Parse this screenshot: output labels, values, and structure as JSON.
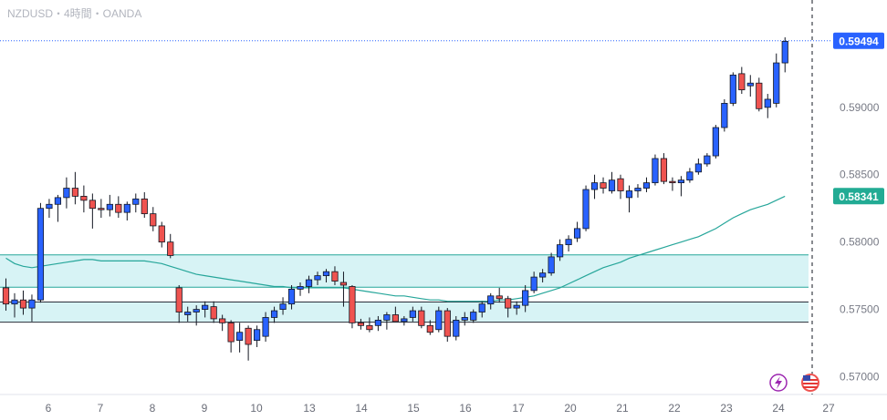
{
  "header": {
    "title": "NZDUSD・4時間・OANDA"
  },
  "colors": {
    "up": "#2962ff",
    "down": "#ef5350",
    "ma": "#26a69a",
    "zone_fill": "#d7f3f5",
    "zone_line": "#26a69a",
    "support_line": "#2a2e39",
    "current_price_badge": "#2962ff",
    "ma_badge": "#22ab94"
  },
  "icons": [
    "lightning-icon",
    "us-flag-icon"
  ],
  "chart_data": {
    "type": "candlestick",
    "ylim": [
      0.5689,
      0.5978
    ],
    "yticks": [
      "0.59000",
      "0.58500",
      "0.58000",
      "0.57500",
      "0.57000"
    ],
    "x_labels": [
      "6",
      "7",
      "8",
      "9",
      "10",
      "13",
      "14",
      "15",
      "16",
      "17",
      "20",
      "21",
      "22",
      "23",
      "24",
      "27"
    ],
    "current_price": "0.59494",
    "ma_value": "0.58341",
    "zones": [
      [
        0.57665,
        0.57905
      ],
      [
        0.57405,
        0.57555
      ]
    ],
    "horizontal_lines": [
      0.57555
    ],
    "series": [
      {
        "ohlc": [
          [
            0.5766,
            0.5773,
            0.5749,
            0.5754
          ],
          [
            0.5754,
            0.5762,
            0.5744,
            0.5757
          ],
          [
            0.5757,
            0.5764,
            0.5746,
            0.5751
          ],
          [
            0.5751,
            0.5761,
            0.5741,
            0.5757
          ],
          [
            0.5757,
            0.5829,
            0.5755,
            0.5825
          ],
          [
            0.5825,
            0.5832,
            0.5818,
            0.5828
          ],
          [
            0.5828,
            0.5835,
            0.5815,
            0.5833
          ],
          [
            0.5833,
            0.5848,
            0.5825,
            0.584
          ],
          [
            0.584,
            0.5852,
            0.5828,
            0.5834
          ],
          [
            0.5834,
            0.5842,
            0.5822,
            0.5831
          ],
          [
            0.5831,
            0.5836,
            0.581,
            0.5825
          ],
          [
            0.5825,
            0.5832,
            0.5818,
            0.5824
          ],
          [
            0.5824,
            0.5835,
            0.5819,
            0.5828
          ],
          [
            0.5828,
            0.5834,
            0.5818,
            0.5822
          ],
          [
            0.5822,
            0.583,
            0.5816,
            0.5828
          ],
          [
            0.5828,
            0.5836,
            0.5822,
            0.5832
          ],
          [
            0.5832,
            0.5837,
            0.5818,
            0.5821
          ],
          [
            0.5821,
            0.5826,
            0.5808,
            0.5812
          ],
          [
            0.5812,
            0.5815,
            0.5796,
            0.58
          ],
          [
            0.58,
            0.5806,
            0.5788,
            0.579
          ],
          [
            0.5766,
            0.5768,
            0.574,
            0.5748
          ],
          [
            0.5746,
            0.5752,
            0.5741,
            0.5748
          ],
          [
            0.5748,
            0.5753,
            0.5738,
            0.575
          ],
          [
            0.575,
            0.5756,
            0.5744,
            0.5753
          ],
          [
            0.5752,
            0.5756,
            0.574,
            0.5743
          ],
          [
            0.5743,
            0.5746,
            0.5734,
            0.574
          ],
          [
            0.574,
            0.5742,
            0.5718,
            0.5726
          ],
          [
            0.5727,
            0.574,
            0.5718,
            0.5733
          ],
          [
            0.5736,
            0.5738,
            0.5712,
            0.5724
          ],
          [
            0.5727,
            0.5738,
            0.5722,
            0.5735
          ],
          [
            0.573,
            0.5748,
            0.5726,
            0.5744
          ],
          [
            0.5744,
            0.5752,
            0.574,
            0.5749
          ],
          [
            0.575,
            0.5759,
            0.5746,
            0.5754
          ],
          [
            0.5754,
            0.5768,
            0.575,
            0.5765
          ],
          [
            0.5765,
            0.577,
            0.576,
            0.5767
          ],
          [
            0.5767,
            0.5775,
            0.5762,
            0.5772
          ],
          [
            0.5772,
            0.5778,
            0.5768,
            0.5775
          ],
          [
            0.5775,
            0.578,
            0.577,
            0.5778
          ],
          [
            0.5778,
            0.5782,
            0.5768,
            0.5771
          ],
          [
            0.577,
            0.5778,
            0.5752,
            0.5768
          ],
          [
            0.5767,
            0.5768,
            0.5736,
            0.574
          ],
          [
            0.574,
            0.5743,
            0.5735,
            0.5738
          ],
          [
            0.5738,
            0.5744,
            0.5733,
            0.5735
          ],
          [
            0.5738,
            0.5745,
            0.5734,
            0.5742
          ],
          [
            0.5742,
            0.5748,
            0.5735,
            0.5746
          ],
          [
            0.5746,
            0.5752,
            0.5741,
            0.5741
          ],
          [
            0.5741,
            0.5745,
            0.5738,
            0.5743
          ],
          [
            0.5744,
            0.5752,
            0.5741,
            0.5749
          ],
          [
            0.5749,
            0.5752,
            0.5736,
            0.5738
          ],
          [
            0.5738,
            0.5742,
            0.5731,
            0.5733
          ],
          [
            0.5735,
            0.5752,
            0.5733,
            0.5749
          ],
          [
            0.5749,
            0.5751,
            0.5726,
            0.573
          ],
          [
            0.573,
            0.5745,
            0.5727,
            0.5742
          ],
          [
            0.5742,
            0.5748,
            0.5738,
            0.5744
          ],
          [
            0.5742,
            0.575,
            0.574,
            0.5748
          ],
          [
            0.5748,
            0.5756,
            0.5744,
            0.5754
          ],
          [
            0.5754,
            0.5762,
            0.575,
            0.576
          ],
          [
            0.576,
            0.5766,
            0.5755,
            0.5758
          ],
          [
            0.5758,
            0.576,
            0.5744,
            0.5751
          ],
          [
            0.5751,
            0.5756,
            0.5746,
            0.5753
          ],
          [
            0.5753,
            0.5768,
            0.5748,
            0.5764
          ],
          [
            0.5764,
            0.5778,
            0.5762,
            0.5774
          ],
          [
            0.5774,
            0.578,
            0.577,
            0.5777
          ],
          [
            0.5777,
            0.5792,
            0.5775,
            0.5789
          ],
          [
            0.5789,
            0.5802,
            0.5786,
            0.5798
          ],
          [
            0.5798,
            0.5805,
            0.5793,
            0.5802
          ],
          [
            0.5803,
            0.5815,
            0.58,
            0.581
          ],
          [
            0.581,
            0.5842,
            0.5808,
            0.5839
          ],
          [
            0.5839,
            0.585,
            0.5832,
            0.5844
          ],
          [
            0.5844,
            0.5848,
            0.5836,
            0.584
          ],
          [
            0.5838,
            0.5852,
            0.5836,
            0.5846
          ],
          [
            0.5847,
            0.585,
            0.5832,
            0.5838
          ],
          [
            0.5833,
            0.5842,
            0.5822,
            0.5838
          ],
          [
            0.5838,
            0.5843,
            0.5833,
            0.584
          ],
          [
            0.584,
            0.5848,
            0.5837,
            0.5844
          ],
          [
            0.5844,
            0.5865,
            0.5842,
            0.5862
          ],
          [
            0.5862,
            0.5866,
            0.5843,
            0.5845
          ],
          [
            0.5845,
            0.5848,
            0.5838,
            0.5844
          ],
          [
            0.5844,
            0.5849,
            0.5834,
            0.5846
          ],
          [
            0.5846,
            0.5855,
            0.5844,
            0.5852
          ],
          [
            0.5852,
            0.5862,
            0.585,
            0.5858
          ],
          [
            0.5858,
            0.5866,
            0.5856,
            0.5864
          ],
          [
            0.5864,
            0.5887,
            0.5862,
            0.5885
          ],
          [
            0.5885,
            0.5906,
            0.5882,
            0.5903
          ],
          [
            0.5903,
            0.5926,
            0.5901,
            0.5924
          ],
          [
            0.5925,
            0.593,
            0.591,
            0.5913
          ],
          [
            0.5916,
            0.5924,
            0.5908,
            0.5918
          ],
          [
            0.5918,
            0.5922,
            0.5897,
            0.5899
          ],
          [
            0.59,
            0.591,
            0.5892,
            0.5906
          ],
          [
            0.5903,
            0.594,
            0.59,
            0.5933
          ],
          [
            0.5933,
            0.5952,
            0.5926,
            0.5949
          ]
        ]
      }
    ],
    "ma": [
      0.5788,
      0.5784,
      0.5782,
      0.5781,
      0.5782,
      0.5783,
      0.5784,
      0.5785,
      0.5786,
      0.5787,
      0.5787,
      0.5786,
      0.5786,
      0.5786,
      0.5786,
      0.5786,
      0.5786,
      0.5785,
      0.5784,
      0.5782,
      0.578,
      0.5778,
      0.5776,
      0.5775,
      0.5774,
      0.5773,
      0.5772,
      0.5771,
      0.577,
      0.5769,
      0.5768,
      0.5767,
      0.5767,
      0.5766,
      0.5766,
      0.5766,
      0.5766,
      0.5766,
      0.5766,
      0.5766,
      0.5765,
      0.5764,
      0.5763,
      0.5762,
      0.5761,
      0.576,
      0.576,
      0.5759,
      0.5758,
      0.5757,
      0.5757,
      0.5756,
      0.5756,
      0.5756,
      0.5756,
      0.5756,
      0.5756,
      0.5757,
      0.5757,
      0.5758,
      0.5759,
      0.576,
      0.5762,
      0.5764,
      0.5766,
      0.5769,
      0.5772,
      0.5775,
      0.5778,
      0.5781,
      0.5783,
      0.5785,
      0.5788,
      0.579,
      0.5792,
      0.5794,
      0.5796,
      0.5798,
      0.58,
      0.5802,
      0.5804,
      0.5807,
      0.581,
      0.5814,
      0.5818,
      0.5821,
      0.5824,
      0.5826,
      0.5828,
      0.5831,
      0.5834
    ]
  }
}
